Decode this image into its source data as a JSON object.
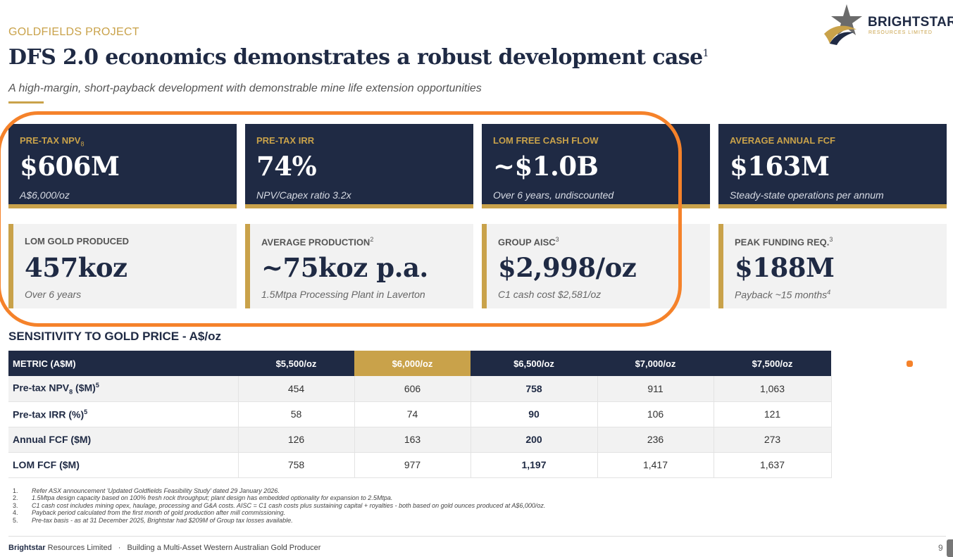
{
  "header": {
    "section_label": "GOLDFIELDS PROJECT",
    "title": "DFS 2.0 economics demonstrates a robust development case",
    "title_footnote": "1",
    "subtitle": "A high-margin, short-payback development with demonstrable mine life extension opportunities"
  },
  "logo": {
    "name": "BRIGHTSTAR",
    "tagline": "RESOURCES LIMITED",
    "icon": "star-icon"
  },
  "metrics_top": [
    {
      "label": "PRE-TAX NPV",
      "label_sub": "8",
      "value": "$606M",
      "note": "A$6,000/oz"
    },
    {
      "label": "PRE-TAX IRR",
      "value": "74%",
      "note": "NPV/Capex ratio 3.2x"
    },
    {
      "label": "LOM FREE CASH FLOW",
      "value": "~$1.0B",
      "note": "Over 6 years, undiscounted"
    },
    {
      "label": "AVERAGE ANNUAL FCF",
      "value": "$163M",
      "note": "Steady-state operations per annum"
    }
  ],
  "metrics_bottom": [
    {
      "label": "LOM GOLD PRODUCED",
      "value": "457koz",
      "note": "Over 6 years"
    },
    {
      "label": "AVERAGE PRODUCTION",
      "label_sup": "2",
      "value": "~75koz p.a.",
      "note": "1.5Mtpa Processing Plant in Laverton"
    },
    {
      "label": "GROUP AISC",
      "label_sup": "3",
      "value": "$2,998/oz",
      "note": "C1 cash cost $2,581/oz"
    },
    {
      "label": "PEAK FUNDING REQ.",
      "label_sup": "3",
      "value": "$188M",
      "note": "Payback ~15 months",
      "note_sup": "4"
    }
  ],
  "sensitivity": {
    "title": "SENSITIVITY TO GOLD PRICE - A$/oz",
    "headers": [
      "METRIC (A$M)",
      "$5,500/oz",
      "$6,000/oz",
      "$6,500/oz",
      "$7,000/oz",
      "$7,500/oz"
    ],
    "rows": [
      {
        "metric": "Pre-tax NPV",
        "metric_sub": "8",
        "metric_rest": " ($M)",
        "metric_sup": "5",
        "values": [
          "454",
          "606",
          "758",
          "911",
          "1,063"
        ]
      },
      {
        "metric": "Pre-tax IRR (%)",
        "metric_sup": "5",
        "values": [
          "58",
          "74",
          "90",
          "106",
          "121"
        ]
      },
      {
        "metric": "Annual FCF ($M)",
        "values": [
          "126",
          "163",
          "200",
          "236",
          "273"
        ]
      },
      {
        "metric": "LOM FCF ($M)",
        "values": [
          "758",
          "977",
          "1,197",
          "1,417",
          "1,637"
        ]
      }
    ]
  },
  "footnotes": [
    {
      "num": "1.",
      "text": "Refer ASX announcement 'Updated Goldfields Feasibility Study' dated 29 January 2026."
    },
    {
      "num": "2.",
      "text": "1.5Mtpa design capacity based on 100% fresh rock throughput; plant design has embedded optionality for expansion to 2.5Mtpa."
    },
    {
      "num": "3.",
      "text": "C1 cash cost includes mining opex, haulage, processing and G&A costs. AISC = C1 cash costs plus sustaining capital + royalties - both based on gold ounces produced at A$6,000/oz."
    },
    {
      "num": "4.",
      "text": "Payback period calculated from the first month of gold production after mill commissioning."
    },
    {
      "num": "5.",
      "text": "Pre-tax basis - as at 31 December 2025, Brightstar had $209M of Group tax losses available."
    }
  ],
  "footer": {
    "brand": "Brightstar",
    "brand_rest": " Resources Limited",
    "separator": "·",
    "tagline": "Building a Multi-Asset Western Australian Gold Producer",
    "page_number": "9"
  },
  "colors": {
    "navy": "#1f2a44",
    "gold": "#c9a24a",
    "highlight_orange": "#f5822a",
    "light_card": "#f2f2f2"
  }
}
